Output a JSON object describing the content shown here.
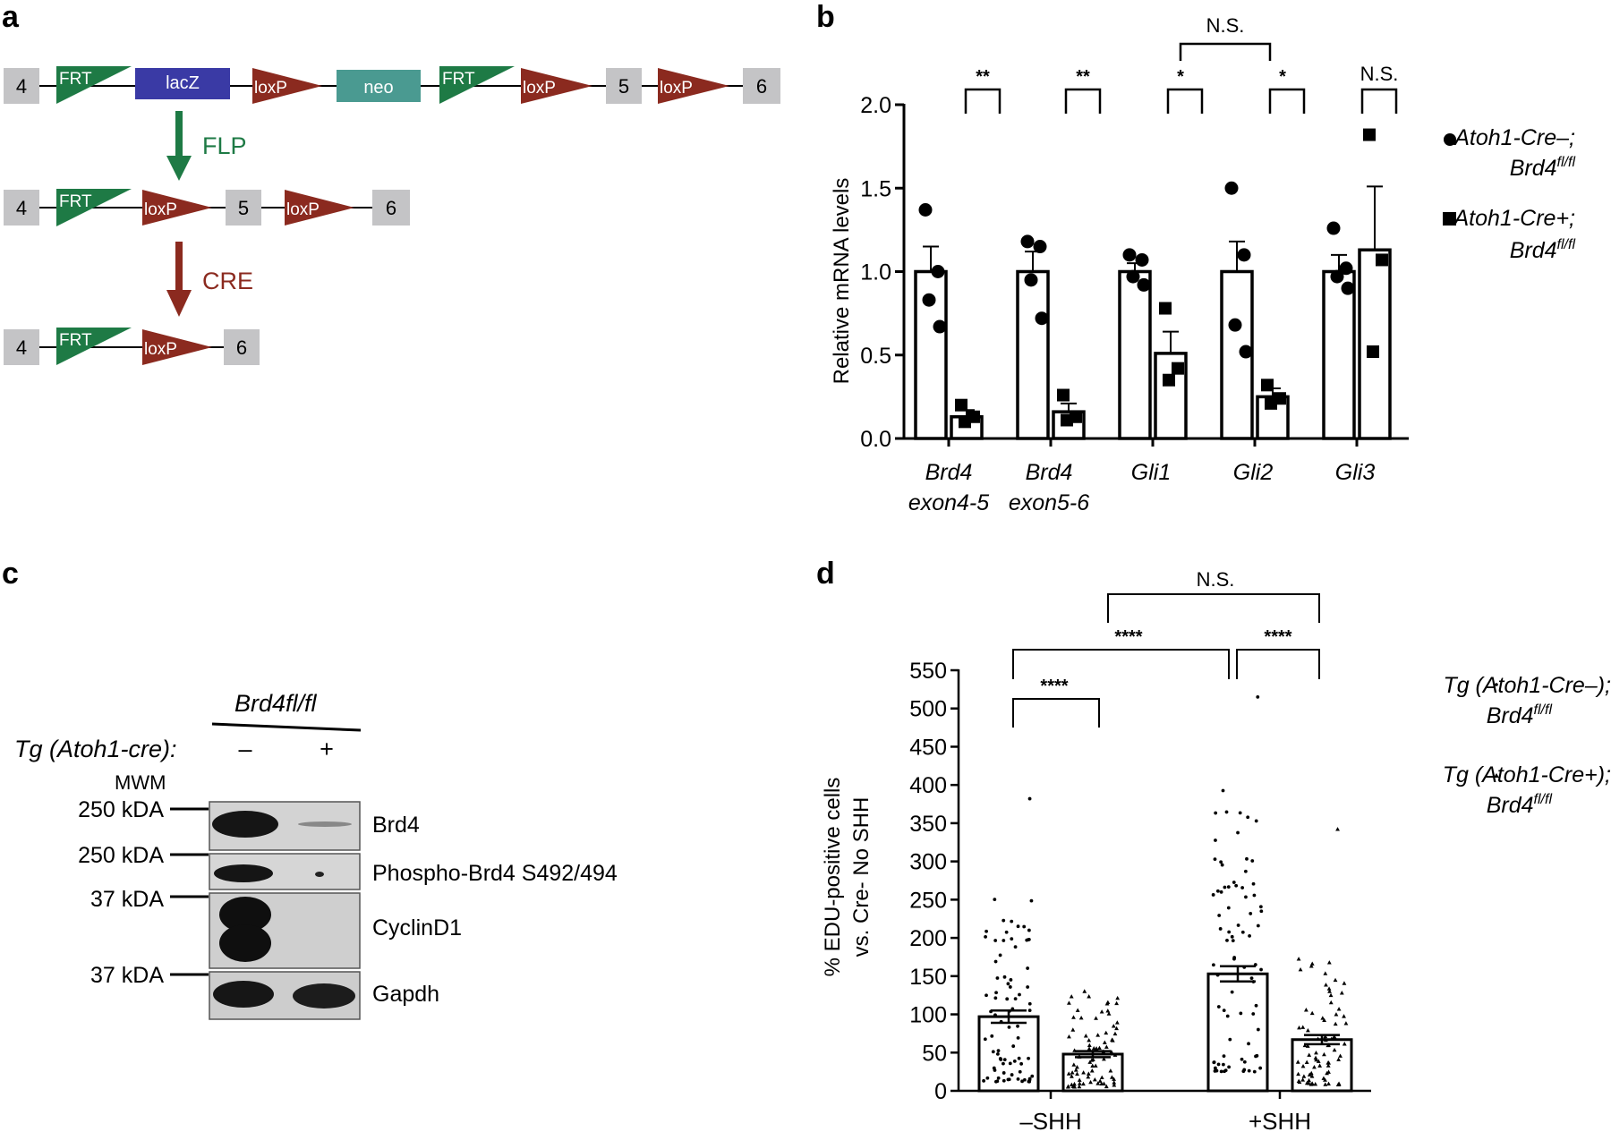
{
  "panels": {
    "a": "a",
    "b": "b",
    "c": "c",
    "d": "d"
  },
  "panel_a": {
    "row1": {
      "exon_start": "4",
      "frt1": "FRT",
      "lacz": "lacZ",
      "loxp1": "loxP",
      "neo": "neo",
      "frt2": "FRT",
      "loxp2": "loxP",
      "exon_mid": "5",
      "loxp3": "loxP",
      "exon_end": "6"
    },
    "flp_label": "FLP",
    "row2": {
      "exon_start": "4",
      "frt": "FRT",
      "loxp1": "loxP",
      "exon_mid": "5",
      "loxp2": "loxP",
      "exon_end": "6"
    },
    "cre_label": "CRE",
    "row3": {
      "exon_start": "4",
      "frt": "FRT",
      "loxp": "loxP",
      "exon_end": "6"
    },
    "colors": {
      "frt": "#1e7a45",
      "lacz": "#3a3aa5",
      "loxp": "#8b2a1f",
      "neo": "#4a9a91",
      "exon": "#c4c4c6",
      "flp": "#1e7a45",
      "cre": "#8b2a1f"
    }
  },
  "panel_c": {
    "genotype_header": "Brd4fl/fl",
    "row_label": "Tg (Atoh1-cre):",
    "minus": "–",
    "plus": "+",
    "mwm": "MWM",
    "markers": [
      "250 kDA",
      "250 kDA",
      "37 kDA",
      "37 kDA"
    ],
    "bands": [
      "Brd4",
      "Phospho-Brd4 S492/494",
      "CyclinD1",
      "Gapdh"
    ]
  },
  "chart_data": [
    {
      "type": "bar",
      "panel": "b",
      "ylabel": "Relative mRNA levels",
      "ylim": [
        0,
        2.0
      ],
      "yticks": [
        "0.0",
        "0.5",
        "1.0",
        "1.5",
        "2.0"
      ],
      "categories": [
        {
          "line1": "Brd4",
          "line2": "exon4-5"
        },
        {
          "line1": "Brd4",
          "line2": "exon5-6"
        },
        {
          "line1": "Gli1",
          "line2": ""
        },
        {
          "line1": "Gli2",
          "line2": ""
        },
        {
          "line1": "Gli3",
          "line2": ""
        }
      ],
      "series": [
        {
          "name": "Atoh1-Cre–; Brd4fl/fl",
          "marker": "circle",
          "values": [
            1.0,
            1.0,
            1.0,
            1.0,
            1.0
          ],
          "sem": [
            0.15,
            0.12,
            0.05,
            0.18,
            0.1
          ],
          "points": [
            [
              1.37,
              1.0,
              0.83,
              0.67
            ],
            [
              1.18,
              1.15,
              0.95,
              0.72
            ],
            [
              1.1,
              1.07,
              0.97,
              0.92
            ],
            [
              1.5,
              1.1,
              0.68,
              0.52
            ],
            [
              1.26,
              1.02,
              0.97,
              0.9
            ]
          ]
        },
        {
          "name": "Atoh1-Cre+; Brd4fl/fl",
          "marker": "square",
          "values": [
            0.13,
            0.16,
            0.51,
            0.25,
            1.13
          ],
          "sem": [
            0.04,
            0.05,
            0.13,
            0.05,
            0.38
          ],
          "points": [
            [
              0.2,
              0.13,
              0.1
            ],
            [
              0.26,
              0.13,
              0.11
            ],
            [
              0.78,
              0.42,
              0.35
            ],
            [
              0.32,
              0.24,
              0.21
            ],
            [
              1.82,
              1.07,
              0.52
            ]
          ]
        }
      ],
      "significance": [
        {
          "label": "**"
        },
        {
          "label": "**"
        },
        {
          "label": "*"
        },
        {
          "label": "*"
        },
        {
          "label": "N.S."
        },
        {
          "label": "N.S.",
          "between": "Gli1 vs Gli2 (Cre+)"
        }
      ],
      "legend": [
        {
          "line1": "Atoh1-Cre–;",
          "line2_base": "Brd4",
          "line2_sup": "fl/fl",
          "marker": "circle"
        },
        {
          "line1": "Atoh1-Cre+;",
          "line2_base": "Brd4",
          "line2_sup": "fl/fl",
          "marker": "square"
        }
      ]
    },
    {
      "type": "bar",
      "panel": "d",
      "ylabel_line1": "% EDU-positive cells",
      "ylabel_line2": "vs. Cre- No SHH",
      "ylim": [
        0,
        550
      ],
      "yticks": [
        "0",
        "50",
        "100",
        "150",
        "200",
        "250",
        "300",
        "350",
        "400",
        "450",
        "500",
        "550"
      ],
      "categories": [
        "–SHH",
        "+SHH"
      ],
      "series": [
        {
          "name": "Tg (Atoh1-Cre–); Brd4fl/fl",
          "marker": "dot",
          "values": [
            97,
            153
          ],
          "sem": [
            8,
            10
          ],
          "max_points": [
            382,
            515
          ],
          "min_points": [
            12,
            25
          ]
        },
        {
          "name": "Tg (Atoh1-Cre+); Brd4fl/fl",
          "marker": "triangle",
          "values": [
            48,
            67
          ],
          "sem": [
            4,
            6
          ],
          "max_points": [
            130,
            342
          ],
          "min_points": [
            5,
            8
          ]
        }
      ],
      "significance": [
        {
          "label": "****",
          "between": "–SHH Cre– vs Cre+"
        },
        {
          "label": "****",
          "between": "–SHH Cre– vs +SHH Cre–"
        },
        {
          "label": "****",
          "between": "+SHH Cre– vs Cre+"
        },
        {
          "label": "N.S.",
          "between": "–SHH Cre+ vs +SHH Cre+"
        }
      ],
      "legend": [
        {
          "line1": "Tg (Atoh1-Cre–);",
          "line2_base": "Brd4",
          "line2_sup": "fl/fl",
          "marker": "dot"
        },
        {
          "line1": "Tg (Atoh1-Cre+);",
          "line2_base": "Brd4",
          "line2_sup": "fl/fl",
          "marker": "triangle"
        }
      ]
    }
  ]
}
